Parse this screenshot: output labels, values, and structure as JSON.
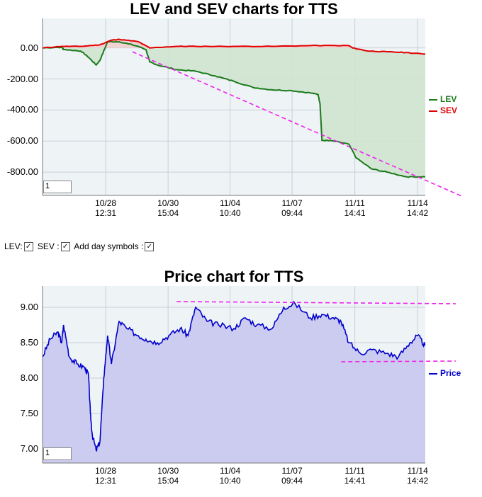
{
  "chart_data": [
    {
      "type": "line",
      "title": "LEV and SEV charts for TTS",
      "xlabel": "",
      "ylabel": "",
      "ylim": [
        -950,
        190
      ],
      "y_ticks": [
        "0.00",
        "-200.00",
        "-400.00",
        "-600.00",
        "-800.00"
      ],
      "y_tick_values": [
        0,
        -200,
        -400,
        -600,
        -800
      ],
      "x_ticks": [
        {
          "date": "10/28",
          "time": "12:31",
          "x": 0.165
        },
        {
          "date": "10/30",
          "time": "15:04",
          "x": 0.328
        },
        {
          "date": "11/04",
          "time": "10:40",
          "x": 0.49
        },
        {
          "date": "11/07",
          "time": "09:44",
          "x": 0.652
        },
        {
          "date": "11/11",
          "time": "14:41",
          "x": 0.816
        },
        {
          "date": "11/14",
          "time": "14:42",
          "x": 0.98
        }
      ],
      "series": [
        {
          "name": "LEV",
          "color": "#1a7a1a",
          "fill": "#cfe3cf",
          "points": [
            [
              0,
              0
            ],
            [
              0.05,
              5
            ],
            [
              0.055,
              -10
            ],
            [
              0.1,
              -20
            ],
            [
              0.12,
              -60
            ],
            [
              0.14,
              -110
            ],
            [
              0.15,
              -80
            ],
            [
              0.17,
              40
            ],
            [
              0.2,
              40
            ],
            [
              0.25,
              10
            ],
            [
              0.27,
              -10
            ],
            [
              0.28,
              -90
            ],
            [
              0.3,
              -110
            ],
            [
              0.35,
              -140
            ],
            [
              0.4,
              -150
            ],
            [
              0.45,
              -180
            ],
            [
              0.5,
              -215
            ],
            [
              0.55,
              -255
            ],
            [
              0.6,
              -270
            ],
            [
              0.65,
              -275
            ],
            [
              0.7,
              -290
            ],
            [
              0.72,
              -300
            ],
            [
              0.725,
              -360
            ],
            [
              0.73,
              -595
            ],
            [
              0.76,
              -600
            ],
            [
              0.8,
              -620
            ],
            [
              0.82,
              -710
            ],
            [
              0.86,
              -780
            ],
            [
              0.9,
              -800
            ],
            [
              0.95,
              -830
            ],
            [
              1.0,
              -830
            ]
          ]
        },
        {
          "name": "SEV",
          "color": "#e00000",
          "fill": "#f2cfcf",
          "points": [
            [
              0,
              0
            ],
            [
              0.05,
              10
            ],
            [
              0.1,
              10
            ],
            [
              0.15,
              20
            ],
            [
              0.18,
              50
            ],
            [
              0.2,
              55
            ],
            [
              0.25,
              40
            ],
            [
              0.28,
              0
            ],
            [
              0.35,
              10
            ],
            [
              0.4,
              10
            ],
            [
              0.5,
              10
            ],
            [
              0.6,
              10
            ],
            [
              0.7,
              15
            ],
            [
              0.8,
              15
            ],
            [
              0.81,
              0
            ],
            [
              0.85,
              -20
            ],
            [
              0.9,
              -25
            ],
            [
              0.95,
              -30
            ],
            [
              1.0,
              -40
            ]
          ]
        }
      ],
      "trendline": {
        "color": "#ee22ee",
        "from": [
          0.235,
          -25
        ],
        "to": [
          1.1,
          -960
        ]
      },
      "legend": [
        {
          "label": "LEV",
          "color": "#1a7a1a"
        },
        {
          "label": "SEV",
          "color": "#e00000"
        }
      ],
      "legend_position": "right",
      "zoom_value": "1",
      "grid": true
    },
    {
      "type": "area",
      "title": "Price chart for TTS",
      "xlabel": "",
      "ylabel": "",
      "ylim": [
        6.8,
        9.3
      ],
      "y_ticks": [
        "9.00",
        "8.50",
        "8.00",
        "7.50",
        "7.00"
      ],
      "y_tick_values": [
        9.0,
        8.5,
        8.0,
        7.5,
        7.0
      ],
      "x_ticks": [
        {
          "date": "10/28",
          "time": "12:31",
          "x": 0.165
        },
        {
          "date": "10/30",
          "time": "15:04",
          "x": 0.328
        },
        {
          "date": "11/04",
          "time": "10:40",
          "x": 0.49
        },
        {
          "date": "11/07",
          "time": "09:44",
          "x": 0.652
        },
        {
          "date": "11/11",
          "time": "14:41",
          "x": 0.816
        },
        {
          "date": "11/14",
          "time": "14:42",
          "x": 0.98
        }
      ],
      "series": [
        {
          "name": "Price",
          "color": "#0000cc",
          "fill": "#ccccf0",
          "points": [
            [
              0,
              8.3
            ],
            [
              0.02,
              8.55
            ],
            [
              0.04,
              8.65
            ],
            [
              0.05,
              8.5
            ],
            [
              0.055,
              8.75
            ],
            [
              0.07,
              8.3
            ],
            [
              0.09,
              8.2
            ],
            [
              0.11,
              8.15
            ],
            [
              0.12,
              8.05
            ],
            [
              0.125,
              7.5
            ],
            [
              0.13,
              7.2
            ],
            [
              0.14,
              6.98
            ],
            [
              0.15,
              7.1
            ],
            [
              0.16,
              8.0
            ],
            [
              0.17,
              8.6
            ],
            [
              0.18,
              8.2
            ],
            [
              0.2,
              8.8
            ],
            [
              0.22,
              8.7
            ],
            [
              0.25,
              8.6
            ],
            [
              0.27,
              8.55
            ],
            [
              0.3,
              8.5
            ],
            [
              0.33,
              8.6
            ],
            [
              0.36,
              8.7
            ],
            [
              0.38,
              8.6
            ],
            [
              0.4,
              9.0
            ],
            [
              0.43,
              8.8
            ],
            [
              0.46,
              8.75
            ],
            [
              0.5,
              8.7
            ],
            [
              0.53,
              8.85
            ],
            [
              0.56,
              8.75
            ],
            [
              0.6,
              8.7
            ],
            [
              0.63,
              9.0
            ],
            [
              0.66,
              9.05
            ],
            [
              0.7,
              8.85
            ],
            [
              0.73,
              8.9
            ],
            [
              0.76,
              8.85
            ],
            [
              0.78,
              8.8
            ],
            [
              0.8,
              8.5
            ],
            [
              0.83,
              8.35
            ],
            [
              0.86,
              8.4
            ],
            [
              0.9,
              8.35
            ],
            [
              0.93,
              8.3
            ],
            [
              0.96,
              8.5
            ],
            [
              0.98,
              8.6
            ],
            [
              1.0,
              8.45
            ]
          ]
        }
      ],
      "trendlines": [
        {
          "color": "#ee22ee",
          "from": [
            0.35,
            9.08
          ],
          "to": [
            1.08,
            9.05
          ]
        },
        {
          "color": "#ee22ee",
          "from": [
            0.78,
            8.23
          ],
          "to": [
            1.08,
            8.24
          ]
        }
      ],
      "legend": [
        {
          "label": "Price",
          "color": "#0000cc"
        }
      ],
      "legend_position": "right",
      "zoom_value": "1",
      "grid": true
    }
  ],
  "controls": {
    "lev_label": "LEV:",
    "sev_label": "SEV :",
    "day_label": "Add day symbols :",
    "lev_checked": true,
    "sev_checked": true,
    "day_checked": true
  }
}
